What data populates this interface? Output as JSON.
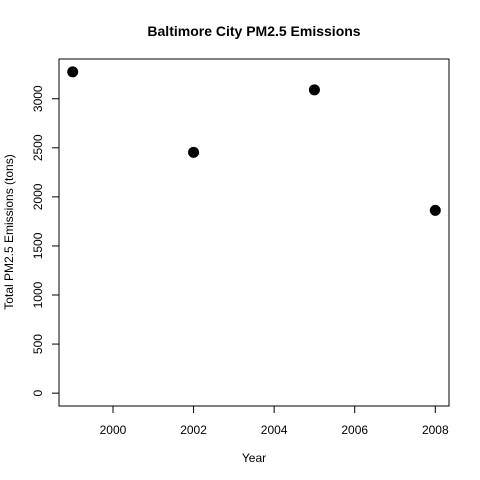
{
  "chart_data": {
    "type": "scatter",
    "title": "Baltimore City PM2.5 Emissions",
    "xlabel": "Year",
    "ylabel": "Total PM2.5 Emissions (tons)",
    "x": [
      1999,
      2002,
      2005,
      2008
    ],
    "y": [
      3274,
      2454,
      3091,
      1862
    ],
    "xlim": [
      1998.66,
      2008.34
    ],
    "ylim": [
      -131,
      3405
    ],
    "xticks": [
      2000,
      2002,
      2004,
      2006,
      2008
    ],
    "yticks": [
      0,
      500,
      1000,
      1500,
      2000,
      2500,
      3000
    ],
    "grid": false,
    "point_color": "#000000"
  }
}
